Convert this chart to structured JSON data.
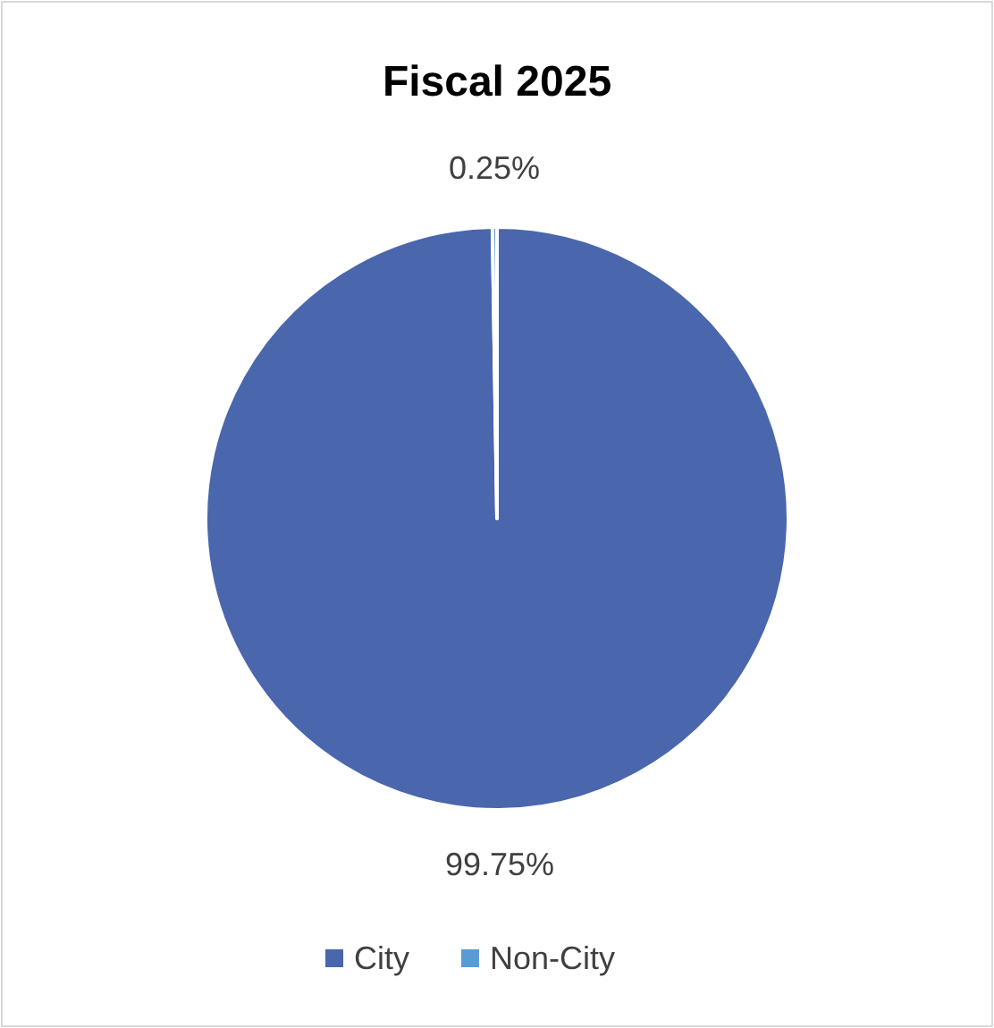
{
  "chart_data": {
    "type": "pie",
    "title": "Fiscal 2025",
    "categories": [
      "City",
      "Non-City"
    ],
    "values": [
      99.75,
      0.25
    ],
    "colors": [
      "#4a66ac",
      "#5b9bd5"
    ],
    "value_labels": [
      "99.75%",
      "0.25%"
    ],
    "legend": "bottom"
  }
}
